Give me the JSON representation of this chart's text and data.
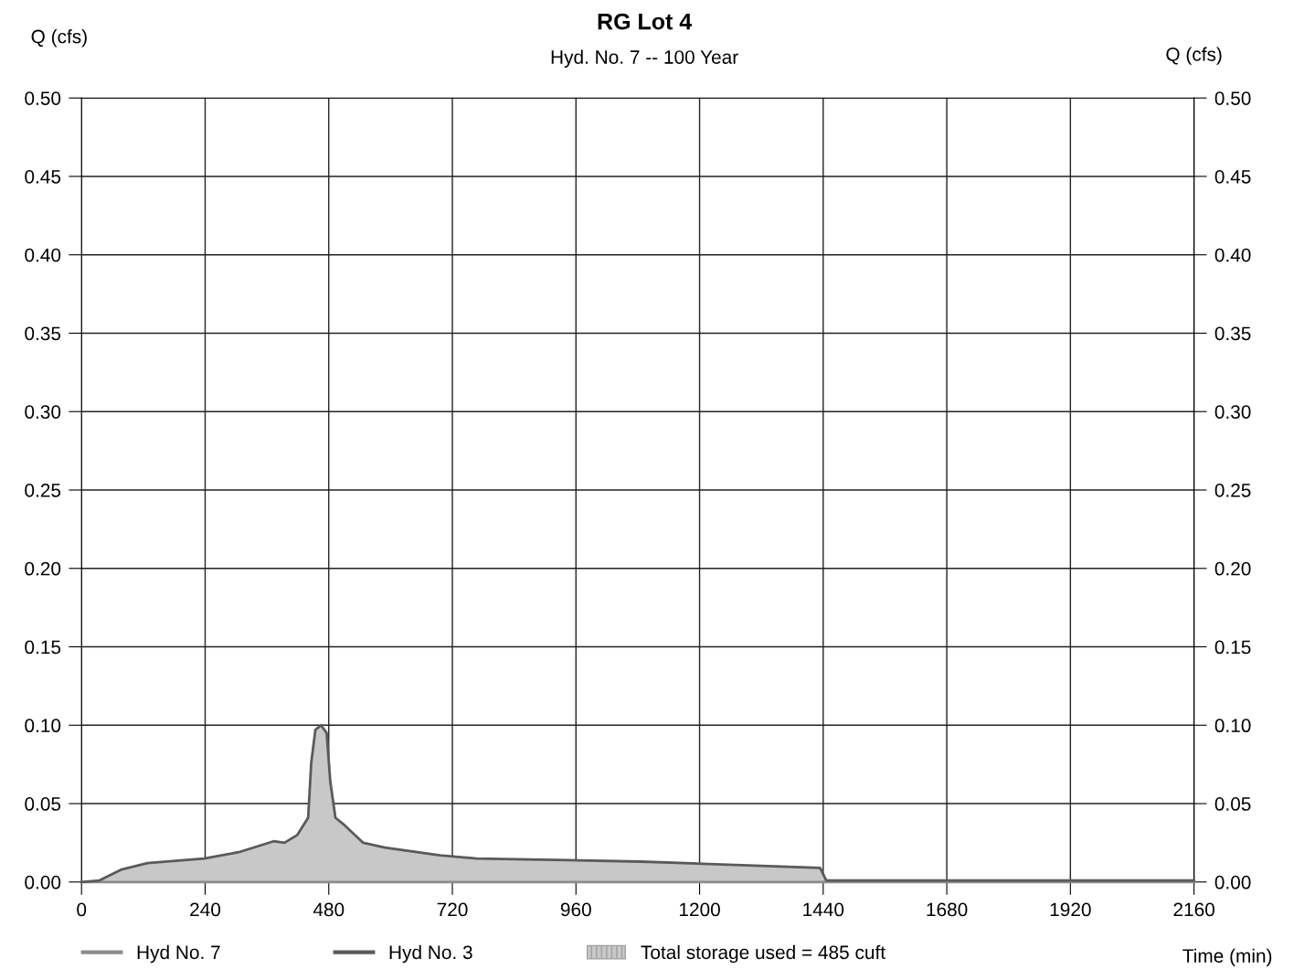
{
  "chart_data": {
    "type": "line",
    "title": "RG Lot 4",
    "subtitle": "Hyd. No. 7 -- 100 Year",
    "xlabel": "Time (min)",
    "ylabel": "Q (cfs)",
    "y2label": "Q (cfs)",
    "xlim": [
      0,
      2160
    ],
    "xticks": [
      0,
      240,
      480,
      720,
      960,
      1200,
      1440,
      1680,
      1920,
      2160
    ],
    "ylim": [
      0,
      0.5
    ],
    "yticks": [
      {
        "value": 0,
        "label": "0.00"
      },
      {
        "value": 0.05,
        "label": "0.05"
      },
      {
        "value": 0.1,
        "label": "0.10"
      },
      {
        "value": 0.15,
        "label": "0.15"
      },
      {
        "value": 0.2,
        "label": "0.20"
      },
      {
        "value": 0.25,
        "label": "0.25"
      },
      {
        "value": 0.3,
        "label": "0.30"
      },
      {
        "value": 0.35,
        "label": "0.35"
      },
      {
        "value": 0.4,
        "label": "0.40"
      },
      {
        "value": 0.45,
        "label": "0.45"
      },
      {
        "value": 0.5,
        "label": "0.50"
      }
    ],
    "y2lim": [
      0,
      0.5
    ],
    "y2ticks": [
      {
        "value": 0,
        "label": "0.00"
      },
      {
        "value": 0.05,
        "label": "0.05"
      },
      {
        "value": 0.1,
        "label": "0.10"
      },
      {
        "value": 0.15,
        "label": "0.15"
      },
      {
        "value": 0.2,
        "label": "0.20"
      },
      {
        "value": 0.25,
        "label": "0.25"
      },
      {
        "value": 0.3,
        "label": "0.30"
      },
      {
        "value": 0.35,
        "label": "0.35"
      },
      {
        "value": 0.4,
        "label": "0.40"
      },
      {
        "value": 0.45,
        "label": "0.45"
      },
      {
        "value": 0.5,
        "label": "0.50"
      }
    ],
    "grid": true,
    "legend": "bottom",
    "x": [
      0,
      35,
      78,
      128,
      199,
      238,
      305,
      373,
      394,
      419,
      440,
      446,
      454,
      465,
      476,
      483,
      493,
      508,
      547,
      589,
      696,
      767,
      944,
      1086,
      1434,
      1446,
      2160
    ],
    "series": [
      {
        "name": "Hyd No. 7",
        "color": "#8c8c8c",
        "values": [
          0,
          0,
          0,
          0,
          0,
          0,
          0,
          0,
          0,
          0,
          0,
          0,
          0,
          0,
          0,
          0,
          0,
          0,
          0,
          0,
          0,
          0,
          0,
          0,
          0,
          0,
          0
        ]
      },
      {
        "name": "Hyd No. 3",
        "type": "line",
        "color": "#5a5a5a",
        "values": [
          0,
          0.001,
          0.008,
          0.012,
          0.014,
          0.015,
          0.019,
          0.026,
          0.025,
          0.03,
          0.041,
          0.076,
          0.097,
          0.1,
          0.095,
          0.064,
          0.041,
          0.037,
          0.025,
          0.022,
          0.017,
          0.015,
          0.014,
          0.013,
          0.009,
          0.001,
          0.001
        ],
        "lower": [
          0,
          0,
          0,
          0,
          0,
          0,
          0,
          0,
          0,
          0,
          0,
          0,
          0,
          0,
          0,
          0,
          0,
          0,
          0,
          0,
          0,
          0,
          0,
          0,
          0,
          0,
          0
        ],
        "upper": [
          0,
          0.001,
          0.008,
          0.012,
          0.014,
          0.015,
          0.019,
          0.026,
          0.025,
          0.03,
          0.041,
          0.076,
          0.097,
          0.1,
          0.095,
          0.064,
          0.041,
          0.037,
          0.025,
          0.022,
          0.017,
          0.015,
          0.014,
          0.013,
          0.009,
          0.001,
          0.001
        ]
      }
    ],
    "annotations": [
      "Total storage used = 485 cuft"
    ]
  }
}
